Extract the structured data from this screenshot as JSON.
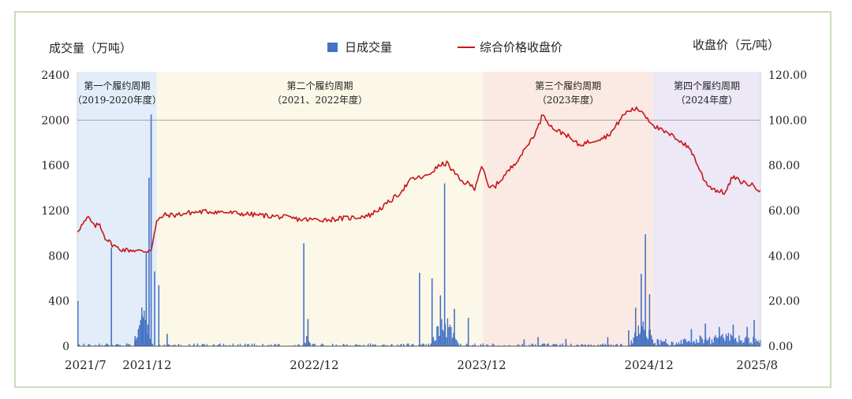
{
  "chart_data": {
    "type": "bar+line",
    "left_axis_label": "成交量（万吨）",
    "right_axis_label": "收盘价（元/吨）",
    "legend": {
      "volume": "日成交量",
      "price": "综合价格收盘价"
    },
    "left_ticks": [
      "2400",
      "2000",
      "1600",
      "1200",
      "800",
      "400",
      "0"
    ],
    "right_ticks": [
      "120.00",
      "100.00",
      "80.00",
      "60.00",
      "40.00",
      "20.00",
      "0.00"
    ],
    "ylim_left": [
      0,
      2400
    ],
    "ylim_right": [
      0,
      120
    ],
    "x_ticks": [
      "2021/7",
      "2021/12",
      "2022/12",
      "2023/12",
      "2024/12",
      "2025/8"
    ],
    "x_tick_months": [
      0,
      5,
      17,
      29,
      41,
      49
    ],
    "x_range_months": [
      0,
      49
    ],
    "reference_line_price": 100,
    "periods": [
      {
        "title": "第一个履约周期",
        "sub": "（2019-2020年度）",
        "start": 0,
        "end": 5.7,
        "color": "#e3edf9"
      },
      {
        "title": "第二个履约周期",
        "sub": "（2021、2022年度）",
        "start": 5.7,
        "end": 29.1,
        "color": "#fcf8e8"
      },
      {
        "title": "第三个履约周期",
        "sub": "（2023年度）",
        "start": 29.1,
        "end": 41.3,
        "color": "#fbeae3"
      },
      {
        "title": "第四个履约周期",
        "sub": "（2024年度）",
        "start": 41.3,
        "end": 49,
        "color": "#ece8f5"
      }
    ],
    "price_series": {
      "name": "综合价格收盘价",
      "color": "#c8161d",
      "points": [
        [
          0,
          51
        ],
        [
          0.4,
          54
        ],
        [
          0.8,
          57
        ],
        [
          1.2,
          53
        ],
        [
          1.6,
          54
        ],
        [
          2.0,
          48
        ],
        [
          2.5,
          45
        ],
        [
          3.0,
          43
        ],
        [
          3.5,
          42.5
        ],
        [
          4.0,
          42.5
        ],
        [
          4.5,
          42
        ],
        [
          5.0,
          42
        ],
        [
          5.3,
          43
        ],
        [
          5.7,
          55
        ],
        [
          6.2,
          58
        ],
        [
          7.0,
          58
        ],
        [
          8.0,
          59
        ],
        [
          9.0,
          59.5
        ],
        [
          10.0,
          59.5
        ],
        [
          11.0,
          59
        ],
        [
          12.0,
          58.5
        ],
        [
          13.0,
          58
        ],
        [
          14.0,
          57.5
        ],
        [
          15.0,
          57
        ],
        [
          16.0,
          56
        ],
        [
          17.0,
          56
        ],
        [
          18.0,
          56
        ],
        [
          19.0,
          56.5
        ],
        [
          20.0,
          57
        ],
        [
          21.0,
          58
        ],
        [
          22.0,
          62
        ],
        [
          23.0,
          67
        ],
        [
          24.0,
          74
        ],
        [
          25.0,
          75
        ],
        [
          26.0,
          80
        ],
        [
          26.5,
          81
        ],
        [
          27.5,
          73
        ],
        [
          28.0,
          72
        ],
        [
          28.5,
          70
        ],
        [
          29.0,
          80
        ],
        [
          29.5,
          70
        ],
        [
          30.0,
          71
        ],
        [
          31.0,
          78
        ],
        [
          32.0,
          86
        ],
        [
          33.0,
          96
        ],
        [
          33.4,
          103
        ],
        [
          34.0,
          97
        ],
        [
          34.5,
          95
        ],
        [
          35.0,
          94
        ],
        [
          35.5,
          91
        ],
        [
          36.0,
          89
        ],
        [
          37.0,
          91
        ],
        [
          38.0,
          93
        ],
        [
          38.5,
          96
        ],
        [
          39.0,
          101
        ],
        [
          39.5,
          104
        ],
        [
          40.0,
          105
        ],
        [
          40.5,
          104
        ],
        [
          41.0,
          100
        ],
        [
          41.5,
          97
        ],
        [
          42.0,
          95
        ],
        [
          43.0,
          92
        ],
        [
          44.0,
          87
        ],
        [
          44.5,
          80
        ],
        [
          45.0,
          73
        ],
        [
          45.5,
          70
        ],
        [
          46.0,
          68.5
        ],
        [
          46.5,
          68
        ],
        [
          47.0,
          75
        ],
        [
          47.5,
          73
        ],
        [
          48.0,
          72
        ],
        [
          48.5,
          71
        ],
        [
          49.0,
          69
        ]
      ]
    },
    "volume_series": {
      "name": "日成交量",
      "color": "#4472c4",
      "peaks": [
        [
          0.0,
          400
        ],
        [
          2.4,
          870
        ],
        [
          3.5,
          25
        ],
        [
          4.1,
          90
        ],
        [
          4.6,
          280
        ],
        [
          4.9,
          820
        ],
        [
          5.1,
          1490
        ],
        [
          5.25,
          2050
        ],
        [
          5.5,
          660
        ],
        [
          5.8,
          540
        ],
        [
          6.4,
          110
        ],
        [
          16.2,
          910
        ],
        [
          16.5,
          240
        ],
        [
          24.5,
          650
        ],
        [
          25.4,
          600
        ],
        [
          26.0,
          450
        ],
        [
          26.3,
          1440
        ],
        [
          27.0,
          330
        ],
        [
          28.0,
          250
        ],
        [
          32.0,
          60
        ],
        [
          33.0,
          80
        ],
        [
          35.0,
          65
        ],
        [
          38.0,
          80
        ],
        [
          39.5,
          140
        ],
        [
          40.0,
          340
        ],
        [
          40.4,
          640
        ],
        [
          40.7,
          990
        ],
        [
          41.0,
          460
        ],
        [
          44.0,
          150
        ],
        [
          45.0,
          200
        ],
        [
          46.0,
          170
        ],
        [
          47.0,
          190
        ],
        [
          48.0,
          170
        ],
        [
          48.5,
          230
        ]
      ],
      "clusters": [
        {
          "center": 4.7,
          "width": 0.7,
          "height": 320
        },
        {
          "center": 16.4,
          "width": 0.35,
          "height": 90
        },
        {
          "center": 26.3,
          "width": 1.1,
          "height": 280
        },
        {
          "center": 40.5,
          "width": 1.0,
          "height": 250
        },
        {
          "center": 46.5,
          "width": 2.5,
          "height": 60
        }
      ]
    }
  }
}
